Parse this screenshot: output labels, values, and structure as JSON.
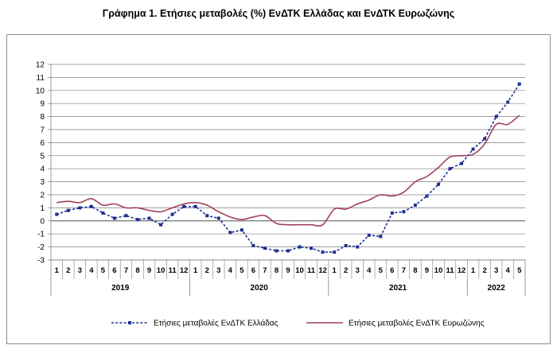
{
  "chart_data": {
    "type": "line",
    "title": "Γράφημα 1. Ετήσιες μεταβολές (%) ΕνΔΤΚ Ελλάδας και ΕνΔΤΚ Ευρωζώνης",
    "xlabel": "",
    "ylabel": "",
    "ylim": [
      -3,
      12
    ],
    "yticks": [
      12,
      11,
      10,
      9,
      8,
      7,
      6,
      5,
      4,
      3,
      2,
      1,
      0,
      -1,
      -2,
      -3
    ],
    "grid": "horizontal",
    "legend_position": "bottom",
    "month_labels": [
      "1",
      "2",
      "3",
      "4",
      "5",
      "6",
      "7",
      "8",
      "9",
      "10",
      "11",
      "12",
      "1",
      "2",
      "3",
      "4",
      "5",
      "6",
      "7",
      "8",
      "9",
      "10",
      "11",
      "12",
      "1",
      "2",
      "3",
      "4",
      "5",
      "6",
      "7",
      "8",
      "9",
      "10",
      "11",
      "12",
      "1",
      "2",
      "3",
      "4",
      "5"
    ],
    "years": [
      {
        "label": "2019",
        "span": 12
      },
      {
        "label": "2020",
        "span": 12
      },
      {
        "label": "2021",
        "span": 12
      },
      {
        "label": "2022",
        "span": 5
      }
    ],
    "series": [
      {
        "name": "Ετήσιες μεταβολές ΕνΔΤΚ Ελλάδας",
        "color": "#1f2f8f",
        "style": "dashed-markers",
        "values": [
          0.5,
          0.8,
          1.0,
          1.1,
          0.6,
          0.2,
          0.4,
          0.1,
          0.2,
          -0.3,
          0.5,
          1.1,
          1.1,
          0.4,
          0.2,
          -0.9,
          -0.7,
          -1.9,
          -2.1,
          -2.3,
          -2.3,
          -2.0,
          -2.1,
          -2.4,
          -2.4,
          -1.9,
          -2.0,
          -1.1,
          -1.2,
          0.6,
          0.7,
          1.2,
          1.9,
          2.8,
          4.0,
          4.4,
          5.5,
          6.3,
          8.0,
          9.1,
          10.5
        ]
      },
      {
        "name": "Ετήσιες μεταβολές ΕνΔΤΚ Ευρωζώνης",
        "color": "#a0405a",
        "style": "solid",
        "values": [
          1.4,
          1.5,
          1.4,
          1.7,
          1.2,
          1.3,
          1.0,
          1.0,
          0.8,
          0.7,
          1.0,
          1.3,
          1.4,
          1.2,
          0.7,
          0.3,
          0.1,
          0.3,
          0.4,
          -0.2,
          -0.3,
          -0.3,
          -0.3,
          -0.3,
          0.9,
          0.9,
          1.3,
          1.6,
          2.0,
          1.9,
          2.2,
          3.0,
          3.4,
          4.1,
          4.9,
          5.0,
          5.1,
          5.9,
          7.4,
          7.4,
          8.1
        ]
      }
    ]
  }
}
